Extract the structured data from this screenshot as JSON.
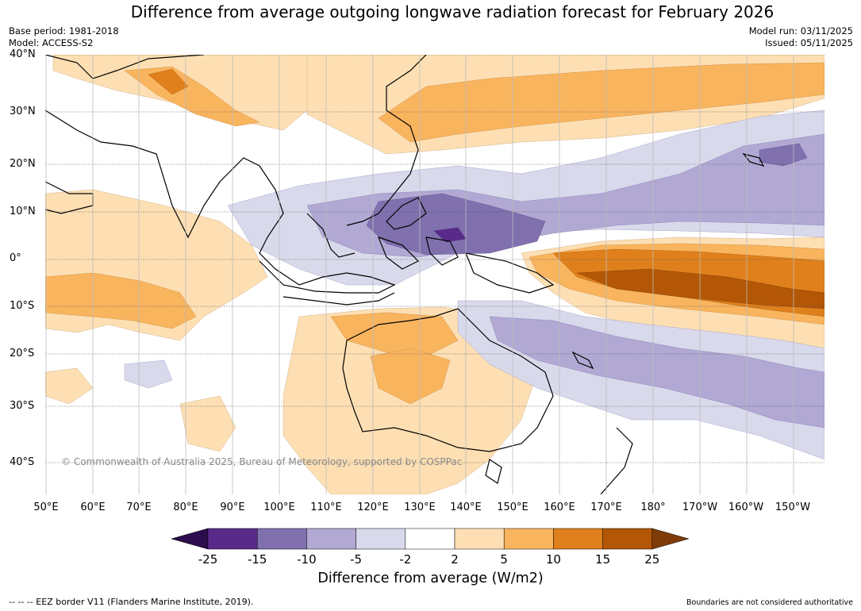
{
  "title": "Difference from average outgoing longwave radiation forecast for February 2026",
  "meta": {
    "base_period": "Base period: 1981-2018",
    "model": "Model: ACCESS-S2",
    "model_run": "Model run: 03/11/2025",
    "issued": "Issued: 05/11/2025"
  },
  "map": {
    "latitudes": [
      "40°N",
      "30°N",
      "20°N",
      "10°N",
      "0°",
      "10°S",
      "20°S",
      "30°S",
      "40°S"
    ],
    "longitudes": [
      "50°E",
      "60°E",
      "70°E",
      "80°E",
      "90°E",
      "100°E",
      "110°E",
      "120°E",
      "130°E",
      "140°E",
      "150°E",
      "160°E",
      "170°E",
      "180°",
      "170°W",
      "160°W",
      "150°W"
    ],
    "copyright": "© Commonwealth of Australia 2025, Bureau of Meteorology, supported by COSPPac"
  },
  "colorbar": {
    "ticks": [
      "-25",
      "-15",
      "-10",
      "-5",
      "-2",
      "2",
      "5",
      "10",
      "15",
      "25"
    ],
    "colors": [
      "#2d0c4e",
      "#5a2a8a",
      "#8070ae",
      "#b1a9d3",
      "#d9d9ec",
      "#ffffff",
      "#fddfb3",
      "#f9b45e",
      "#e0801c",
      "#b35706",
      "#7f3b08"
    ],
    "label": "Difference from average (W/m2)"
  },
  "footer": {
    "eez": "--  --  -- EEZ border V11 (Flanders Marine Institute, 2019).",
    "boundaries": "Boundaries are not considered authoritative"
  }
}
